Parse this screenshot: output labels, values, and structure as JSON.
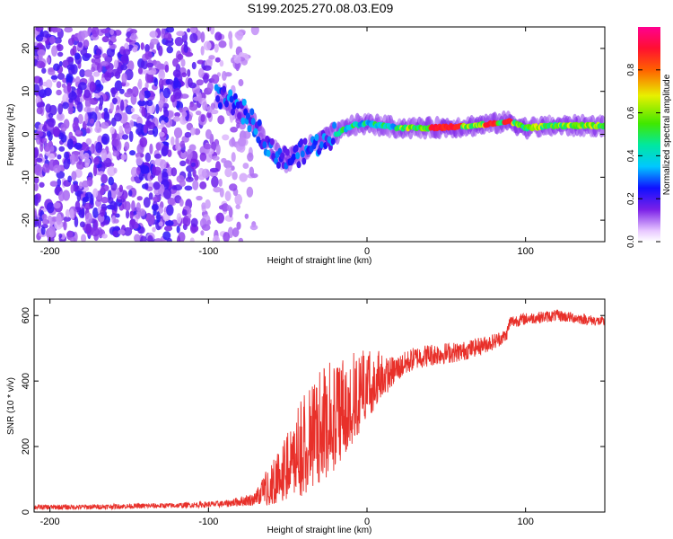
{
  "title": "S199.2025.270.08.03.E09",
  "chart_data": [
    {
      "type": "heatmap",
      "xlabel": "Height of straight line (km)",
      "ylabel": "Frequency (Hz)",
      "xlim": [
        -210,
        150
      ],
      "ylim": [
        -25,
        25
      ],
      "xticks": [
        -200,
        -100,
        0,
        100
      ],
      "yticks": [
        -20,
        -10,
        0,
        10,
        20
      ],
      "colorbar": {
        "label": "Normalized spectral amplitude",
        "range": [
          0,
          1
        ],
        "ticks": [
          "0.0",
          "0.2",
          "0.4",
          "0.6",
          "0.8"
        ]
      },
      "ridge": {
        "description_points": [
          {
            "x": -90,
            "y": 8
          },
          {
            "x": -80,
            "y": 6
          },
          {
            "x": -70,
            "y": 2
          },
          {
            "x": -60,
            "y": -4
          },
          {
            "x": -50,
            "y": -6
          },
          {
            "x": -40,
            "y": -4
          },
          {
            "x": -30,
            "y": -2
          },
          {
            "x": -20,
            "y": 0
          },
          {
            "x": -10,
            "y": 2
          },
          {
            "x": 0,
            "y": 2.5
          },
          {
            "x": 20,
            "y": 1.5
          },
          {
            "x": 40,
            "y": 1.5
          },
          {
            "x": 60,
            "y": 1.8
          },
          {
            "x": 80,
            "y": 2.5
          },
          {
            "x": 90,
            "y": 3
          },
          {
            "x": 100,
            "y": 1.5
          },
          {
            "x": 120,
            "y": 2
          },
          {
            "x": 150,
            "y": 2
          }
        ]
      }
    },
    {
      "type": "line",
      "xlabel": "Height of straight line (km)",
      "ylabel": "SNR (10 * v/v)",
      "xlim": [
        -210,
        150
      ],
      "ylim": [
        0,
        650
      ],
      "xticks": [
        -200,
        -100,
        0,
        100
      ],
      "yticks": [
        0,
        200,
        400,
        600
      ],
      "color": "#e8302a",
      "series": [
        {
          "name": "SNR",
          "x": [
            -210,
            -180,
            -150,
            -120,
            -90,
            -70,
            -60,
            -50,
            -40,
            -30,
            -20,
            -10,
            0,
            10,
            20,
            30,
            40,
            60,
            80,
            88,
            90,
            100,
            120,
            150
          ],
          "y": [
            15,
            15,
            18,
            20,
            25,
            40,
            80,
            130,
            180,
            230,
            270,
            320,
            370,
            410,
            440,
            470,
            480,
            490,
            520,
            540,
            580,
            590,
            600,
            580
          ],
          "noise": [
            8,
            8,
            8,
            8,
            10,
            20,
            60,
            90,
            130,
            150,
            140,
            120,
            90,
            60,
            40,
            35,
            35,
            30,
            25,
            20,
            20,
            18,
            18,
            15
          ]
        }
      ]
    }
  ]
}
